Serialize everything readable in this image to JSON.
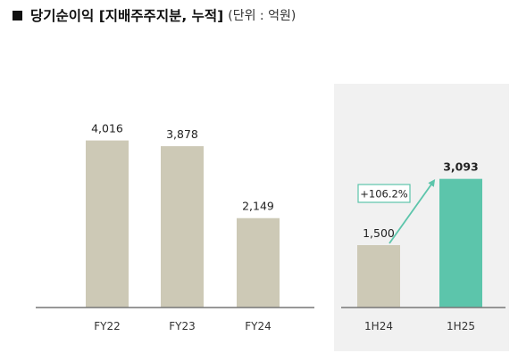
{
  "title": "당기순이익 [지배주주지분, 누적]",
  "unit_note": "(단위 : 억원)",
  "colors": {
    "bar": "#cdc9b6",
    "highlight": "#5cc5ab",
    "axis": "#777777",
    "panel": "#f1f1f1",
    "arrow": "#5cc5ab",
    "text": "#222222"
  },
  "chart_data": [
    {
      "type": "bar",
      "title": "",
      "xlabel": "",
      "ylabel": "",
      "categories": [
        "FY22",
        "FY23",
        "FY24"
      ],
      "values": [
        4016,
        3878,
        2149
      ],
      "value_labels": [
        "4,016",
        "3,878",
        "2,149"
      ],
      "ylim": [
        0,
        4500
      ],
      "grid": false
    },
    {
      "type": "bar",
      "title": "",
      "xlabel": "",
      "ylabel": "",
      "categories": [
        "1H24",
        "1H25"
      ],
      "values": [
        1500,
        3093
      ],
      "value_labels": [
        "1,500",
        "3,093"
      ],
      "highlight_index": 1,
      "ylim": [
        0,
        4500
      ],
      "grid": false,
      "annotation": {
        "text": "+106.2%",
        "from": "1H24",
        "to": "1H25"
      }
    }
  ]
}
